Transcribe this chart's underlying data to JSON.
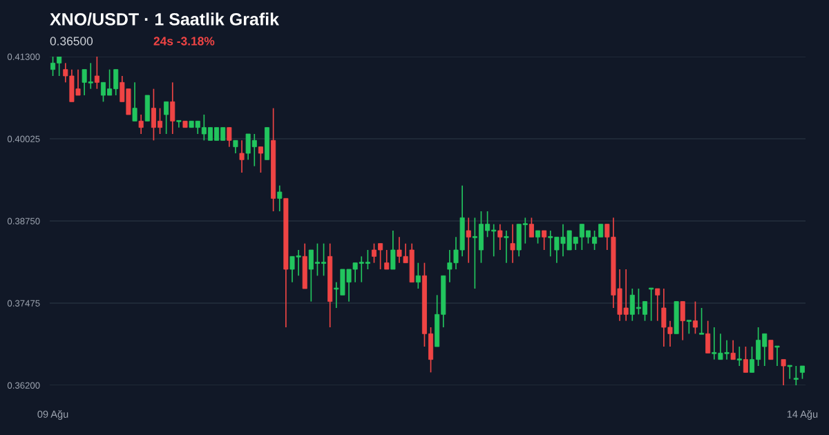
{
  "chart_data": {
    "type": "candlestick",
    "title": "XNO/USDT · 1 Saatlik Grafik",
    "subtitle": "0.36500",
    "annotations": [
      "24s -3.18%"
    ],
    "categories": [
      "09 Ağu",
      null,
      null,
      null,
      null,
      null,
      null,
      null,
      null,
      null,
      null,
      null,
      null,
      null,
      null,
      null,
      null,
      null,
      null,
      null,
      null,
      null,
      null,
      null,
      null,
      null,
      null,
      null,
      null,
      null,
      null,
      null,
      null,
      null,
      null,
      null,
      null,
      null,
      null,
      null,
      null,
      null,
      null,
      null,
      null,
      null,
      null,
      null,
      null,
      null,
      null,
      null,
      null,
      null,
      null,
      null,
      null,
      null,
      null,
      null,
      null,
      null,
      null,
      null,
      null,
      null,
      null,
      null,
      null,
      null,
      null,
      null,
      null,
      null,
      null,
      null,
      null,
      null,
      null,
      null,
      null,
      null,
      null,
      null,
      null,
      null,
      null,
      null,
      null,
      null,
      null,
      null,
      null,
      null,
      null,
      null,
      null,
      null,
      null,
      null,
      null,
      null,
      null,
      null,
      null,
      null,
      null,
      null,
      null,
      null,
      null,
      null,
      null,
      null,
      null,
      null,
      null,
      null,
      null,
      "14 Ağu"
    ],
    "ohlc": [
      [
        0.411,
        0.413,
        0.41,
        0.412
      ],
      [
        0.412,
        0.413,
        0.41,
        0.413
      ],
      [
        0.411,
        0.412,
        0.409,
        0.41
      ],
      [
        0.41,
        0.411,
        0.406,
        0.406
      ],
      [
        0.408,
        0.411,
        0.407,
        0.407
      ],
      [
        0.409,
        0.411,
        0.407,
        0.411
      ],
      [
        0.409,
        0.412,
        0.408,
        0.409
      ],
      [
        0.41,
        0.413,
        0.408,
        0.409
      ],
      [
        0.407,
        0.409,
        0.406,
        0.409
      ],
      [
        0.407,
        0.411,
        0.407,
        0.408
      ],
      [
        0.408,
        0.411,
        0.407,
        0.411
      ],
      [
        0.409,
        0.41,
        0.406,
        0.406
      ],
      [
        0.408,
        0.408,
        0.404,
        0.404
      ],
      [
        0.403,
        0.409,
        0.403,
        0.405
      ],
      [
        0.403,
        0.404,
        0.401,
        0.402
      ],
      [
        0.403,
        0.407,
        0.403,
        0.407
      ],
      [
        0.405,
        0.408,
        0.4,
        0.402
      ],
      [
        0.403,
        0.405,
        0.401,
        0.402
      ],
      [
        0.404,
        0.406,
        0.401,
        0.406
      ],
      [
        0.406,
        0.409,
        0.401,
        0.403
      ],
      [
        0.403,
        0.403,
        0.402,
        0.403
      ],
      [
        0.403,
        0.403,
        0.402,
        0.402
      ],
      [
        0.402,
        0.403,
        0.402,
        0.403
      ],
      [
        0.402,
        0.403,
        0.401,
        0.403
      ],
      [
        0.401,
        0.404,
        0.4,
        0.402
      ],
      [
        0.4,
        0.402,
        0.4,
        0.402
      ],
      [
        0.4,
        0.402,
        0.4,
        0.402
      ],
      [
        0.4,
        0.402,
        0.4,
        0.402
      ],
      [
        0.402,
        0.402,
        0.399,
        0.4
      ],
      [
        0.399,
        0.4,
        0.398,
        0.4
      ],
      [
        0.398,
        0.4,
        0.395,
        0.397
      ],
      [
        0.398,
        0.401,
        0.397,
        0.401
      ],
      [
        0.399,
        0.401,
        0.396,
        0.4
      ],
      [
        0.399,
        0.399,
        0.395,
        0.398
      ],
      [
        0.397,
        0.402,
        0.397,
        0.402
      ],
      [
        0.4,
        0.405,
        0.389,
        0.391
      ],
      [
        0.391,
        0.393,
        0.389,
        0.392
      ],
      [
        0.391,
        0.391,
        0.371,
        0.38
      ],
      [
        0.38,
        0.382,
        0.378,
        0.382
      ],
      [
        0.382,
        0.383,
        0.379,
        0.382
      ],
      [
        0.382,
        0.384,
        0.377,
        0.377
      ],
      [
        0.38,
        0.383,
        0.375,
        0.383
      ],
      [
        0.381,
        0.384,
        0.379,
        0.381
      ],
      [
        0.381,
        0.384,
        0.379,
        0.381
      ],
      [
        0.382,
        0.384,
        0.371,
        0.375
      ],
      [
        0.377,
        0.378,
        0.374,
        0.377
      ],
      [
        0.376,
        0.38,
        0.376,
        0.38
      ],
      [
        0.378,
        0.38,
        0.375,
        0.38
      ],
      [
        0.38,
        0.381,
        0.378,
        0.381
      ],
      [
        0.381,
        0.382,
        0.378,
        0.381
      ],
      [
        0.381,
        0.383,
        0.38,
        0.381
      ],
      [
        0.383,
        0.384,
        0.381,
        0.382
      ],
      [
        0.384,
        0.384,
        0.38,
        0.383
      ],
      [
        0.381,
        0.383,
        0.38,
        0.38
      ],
      [
        0.38,
        0.386,
        0.38,
        0.383
      ],
      [
        0.383,
        0.385,
        0.381,
        0.382
      ],
      [
        0.382,
        0.384,
        0.381,
        0.381
      ],
      [
        0.383,
        0.384,
        0.378,
        0.378
      ],
      [
        0.378,
        0.381,
        0.377,
        0.379
      ],
      [
        0.379,
        0.381,
        0.368,
        0.37
      ],
      [
        0.37,
        0.371,
        0.364,
        0.366
      ],
      [
        0.368,
        0.376,
        0.368,
        0.373
      ],
      [
        0.373,
        0.379,
        0.371,
        0.379
      ],
      [
        0.38,
        0.383,
        0.378,
        0.381
      ],
      [
        0.381,
        0.385,
        0.38,
        0.383
      ],
      [
        0.383,
        0.393,
        0.382,
        0.388
      ],
      [
        0.386,
        0.388,
        0.381,
        0.385
      ],
      [
        0.385,
        0.388,
        0.377,
        0.385
      ],
      [
        0.383,
        0.389,
        0.381,
        0.387
      ],
      [
        0.386,
        0.389,
        0.385,
        0.387
      ],
      [
        0.386,
        0.387,
        0.382,
        0.386
      ],
      [
        0.386,
        0.387,
        0.383,
        0.385
      ],
      [
        0.385,
        0.386,
        0.381,
        0.385
      ],
      [
        0.384,
        0.387,
        0.381,
        0.383
      ],
      [
        0.383,
        0.387,
        0.382,
        0.387
      ],
      [
        0.387,
        0.388,
        0.384,
        0.387
      ],
      [
        0.387,
        0.388,
        0.385,
        0.385
      ],
      [
        0.385,
        0.386,
        0.384,
        0.386
      ],
      [
        0.386,
        0.386,
        0.383,
        0.385
      ],
      [
        0.385,
        0.386,
        0.382,
        0.385
      ],
      [
        0.383,
        0.385,
        0.381,
        0.385
      ],
      [
        0.384,
        0.387,
        0.382,
        0.385
      ],
      [
        0.383,
        0.386,
        0.383,
        0.386
      ],
      [
        0.384,
        0.385,
        0.383,
        0.385
      ],
      [
        0.385,
        0.387,
        0.383,
        0.387
      ],
      [
        0.385,
        0.386,
        0.384,
        0.386
      ],
      [
        0.384,
        0.386,
        0.383,
        0.385
      ],
      [
        0.385,
        0.387,
        0.385,
        0.387
      ],
      [
        0.387,
        0.387,
        0.383,
        0.385
      ],
      [
        0.385,
        0.388,
        0.374,
        0.376
      ],
      [
        0.377,
        0.38,
        0.372,
        0.373
      ],
      [
        0.374,
        0.38,
        0.372,
        0.373
      ],
      [
        0.373,
        0.377,
        0.372,
        0.376
      ],
      [
        0.374,
        0.377,
        0.373,
        0.374
      ],
      [
        0.373,
        0.375,
        0.372,
        0.375
      ],
      [
        0.377,
        0.377,
        0.372,
        0.377
      ],
      [
        0.377,
        0.377,
        0.372,
        0.376
      ],
      [
        0.374,
        0.377,
        0.368,
        0.371
      ],
      [
        0.371,
        0.372,
        0.368,
        0.37
      ],
      [
        0.37,
        0.375,
        0.37,
        0.375
      ],
      [
        0.375,
        0.375,
        0.369,
        0.372
      ],
      [
        0.372,
        0.372,
        0.37,
        0.372
      ],
      [
        0.372,
        0.375,
        0.37,
        0.371
      ],
      [
        0.37,
        0.374,
        0.37,
        0.37
      ],
      [
        0.37,
        0.372,
        0.367,
        0.367
      ],
      [
        0.367,
        0.371,
        0.366,
        0.367
      ],
      [
        0.366,
        0.37,
        0.366,
        0.367
      ],
      [
        0.367,
        0.369,
        0.366,
        0.367
      ],
      [
        0.367,
        0.369,
        0.366,
        0.366
      ],
      [
        0.366,
        0.368,
        0.365,
        0.366
      ],
      [
        0.366,
        0.368,
        0.364,
        0.364
      ],
      [
        0.364,
        0.368,
        0.364,
        0.366
      ],
      [
        0.366,
        0.371,
        0.365,
        0.369
      ],
      [
        0.368,
        0.37,
        0.365,
        0.37
      ],
      [
        0.369,
        0.369,
        0.366,
        0.366
      ],
      [
        0.368,
        0.368,
        0.365,
        0.368
      ],
      [
        0.366,
        0.366,
        0.362,
        0.365
      ],
      [
        0.365,
        0.365,
        0.363,
        0.365
      ],
      [
        0.363,
        0.365,
        0.362,
        0.363
      ],
      [
        0.364,
        0.365,
        0.363,
        0.365
      ]
    ],
    "colors": [
      "#22c55e",
      "#22c55e",
      "#ef4444",
      "#ef4444",
      "#ef4444",
      "#22c55e",
      "#22c55e",
      "#ef4444",
      "#22c55e",
      "#22c55e",
      "#22c55e",
      "#ef4444",
      "#ef4444",
      "#22c55e",
      "#ef4444",
      "#22c55e",
      "#ef4444",
      "#ef4444",
      "#22c55e",
      "#ef4444",
      "#22c55e",
      "#ef4444",
      "#22c55e",
      "#22c55e",
      "#22c55e",
      "#22c55e",
      "#22c55e",
      "#22c55e",
      "#ef4444",
      "#22c55e",
      "#ef4444",
      "#22c55e",
      "#22c55e",
      "#ef4444",
      "#22c55e",
      "#ef4444",
      "#22c55e",
      "#ef4444",
      "#22c55e",
      "#22c55e",
      "#ef4444",
      "#22c55e",
      "#22c55e",
      "#22c55e",
      "#ef4444",
      "#22c55e",
      "#22c55e",
      "#22c55e",
      "#22c55e",
      "#22c55e",
      "#22c55e",
      "#ef4444",
      "#ef4444",
      "#ef4444",
      "#22c55e",
      "#ef4444",
      "#ef4444",
      "#ef4444",
      "#22c55e",
      "#ef4444",
      "#ef4444",
      "#22c55e",
      "#22c55e",
      "#22c55e",
      "#22c55e",
      "#22c55e",
      "#ef4444",
      "#22c55e",
      "#22c55e",
      "#22c55e",
      "#22c55e",
      "#ef4444",
      "#22c55e",
      "#ef4444",
      "#22c55e",
      "#22c55e",
      "#ef4444",
      "#22c55e",
      "#ef4444",
      "#22c55e",
      "#22c55e",
      "#22c55e",
      "#22c55e",
      "#22c55e",
      "#22c55e",
      "#22c55e",
      "#22c55e",
      "#22c55e",
      "#ef4444",
      "#ef4444",
      "#ef4444",
      "#ef4444",
      "#22c55e",
      "#22c55e",
      "#22c55e",
      "#22c55e",
      "#ef4444",
      "#ef4444",
      "#ef4444",
      "#22c55e",
      "#ef4444",
      "#22c55e",
      "#ef4444",
      "#22c55e",
      "#ef4444",
      "#22c55e",
      "#22c55e",
      "#22c55e",
      "#ef4444",
      "#22c55e",
      "#ef4444",
      "#22c55e",
      "#22c55e",
      "#22c55e",
      "#ef4444",
      "#22c55e",
      "#ef4444",
      "#22c55e",
      "#22c55e",
      "#22c55e"
    ],
    "ylim": [
      0.362,
      0.413
    ],
    "yticks": [
      {
        "value": 0.362,
        "label": "0.36200"
      },
      {
        "value": 0.37475,
        "label": "0.37475"
      },
      {
        "value": 0.3875,
        "label": "0.38750"
      },
      {
        "value": 0.40025,
        "label": "0.40025"
      },
      {
        "value": 0.413,
        "label": "0.41300"
      }
    ],
    "grid": "y"
  }
}
